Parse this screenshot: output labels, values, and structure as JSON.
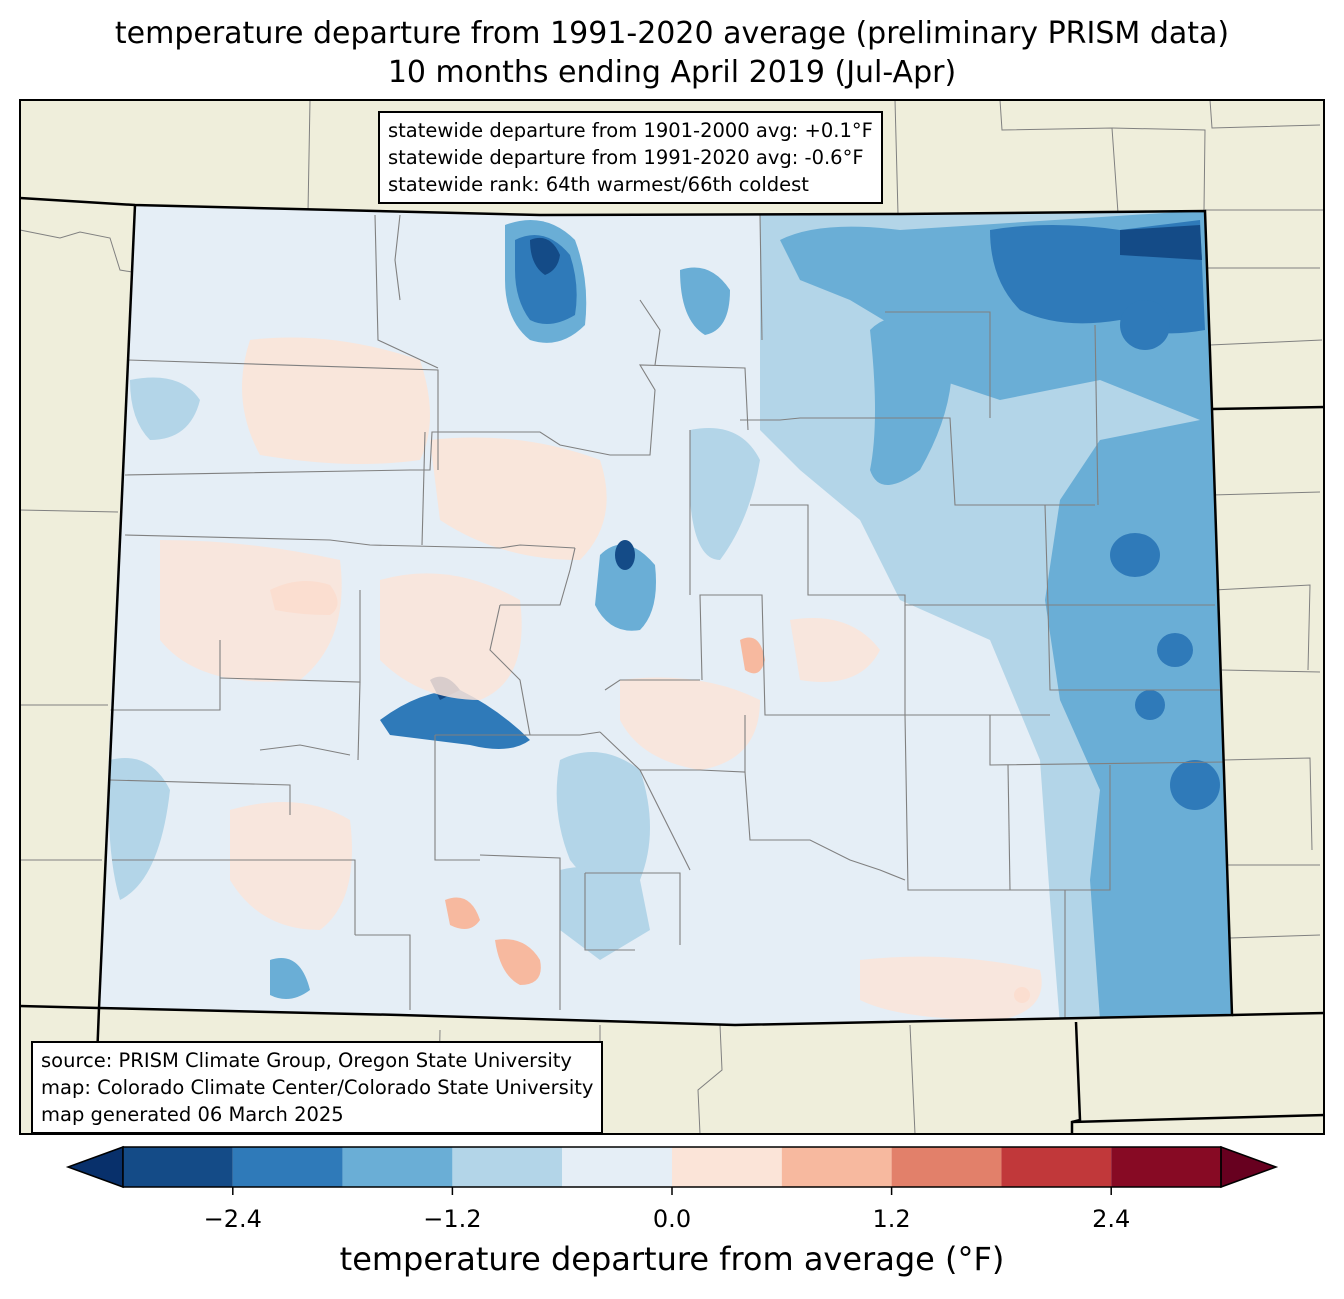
{
  "title": {
    "line1": "temperature departure from 1991-2020 average (preliminary PRISM data)",
    "line2": "10 months ending April 2019 (Jul-Apr)"
  },
  "stats": {
    "line1": "statewide departure from 1901-2000 avg: +0.1°F",
    "line2": "statewide departure from 1991-2020 avg: -0.6°F",
    "line3": "statewide rank: 64th warmest/66th coldest"
  },
  "source": {
    "line1": "source: PRISM Climate Group, Oregon State University",
    "line2": "map: Colorado Climate Center/Colorado State University",
    "line3": "map generated 06 March 2025"
  },
  "colorbar": {
    "label": "temperature departure from average (°F)",
    "ticks": [
      "−2.4",
      "−1.2",
      "0.0",
      "1.2",
      "2.4"
    ],
    "tick_values": [
      -2.4,
      -1.2,
      0.0,
      1.2,
      2.4
    ],
    "range": [
      -3.0,
      3.0
    ],
    "step": 0.6,
    "colors": [
      "#08306b",
      "#144b87",
      "#2f7ab9",
      "#6aaed6",
      "#b3d5e8",
      "#e5eef6",
      "#fbe4d8",
      "#f7b99f",
      "#e2806a",
      "#c1383a",
      "#870a24",
      "#67001f"
    ]
  },
  "map_colors": {
    "land": "#efeedb",
    "state_border": "#000000",
    "county_border": "#808080"
  }
}
